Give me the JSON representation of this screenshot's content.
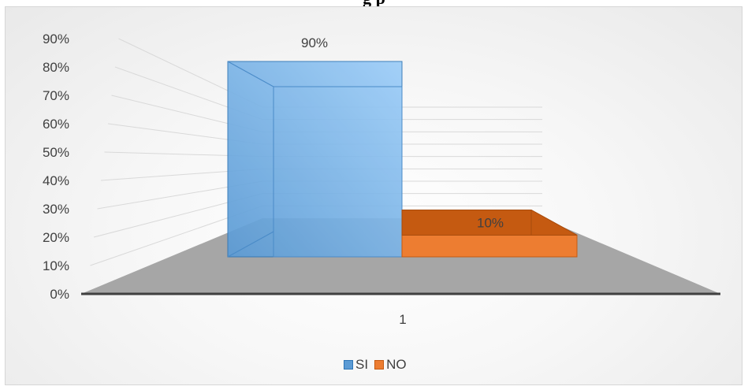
{
  "chart_data": {
    "type": "bar",
    "title": "",
    "categories": [
      "1"
    ],
    "series": [
      {
        "name": "SI",
        "values": [
          90
        ],
        "color": "#5b9bd5",
        "label": "90%"
      },
      {
        "name": "NO",
        "values": [
          10
        ],
        "color": "#ed7d31",
        "label": "10%"
      }
    ],
    "ylim": [
      0,
      90
    ],
    "ytick_labels": [
      "0%",
      "10%",
      "20%",
      "30%",
      "40%",
      "50%",
      "60%",
      "70%",
      "80%",
      "90%"
    ],
    "grid": true,
    "legend_position": "bottom",
    "style": "3d-clustered-column"
  },
  "title_partial_text": "g      p"
}
